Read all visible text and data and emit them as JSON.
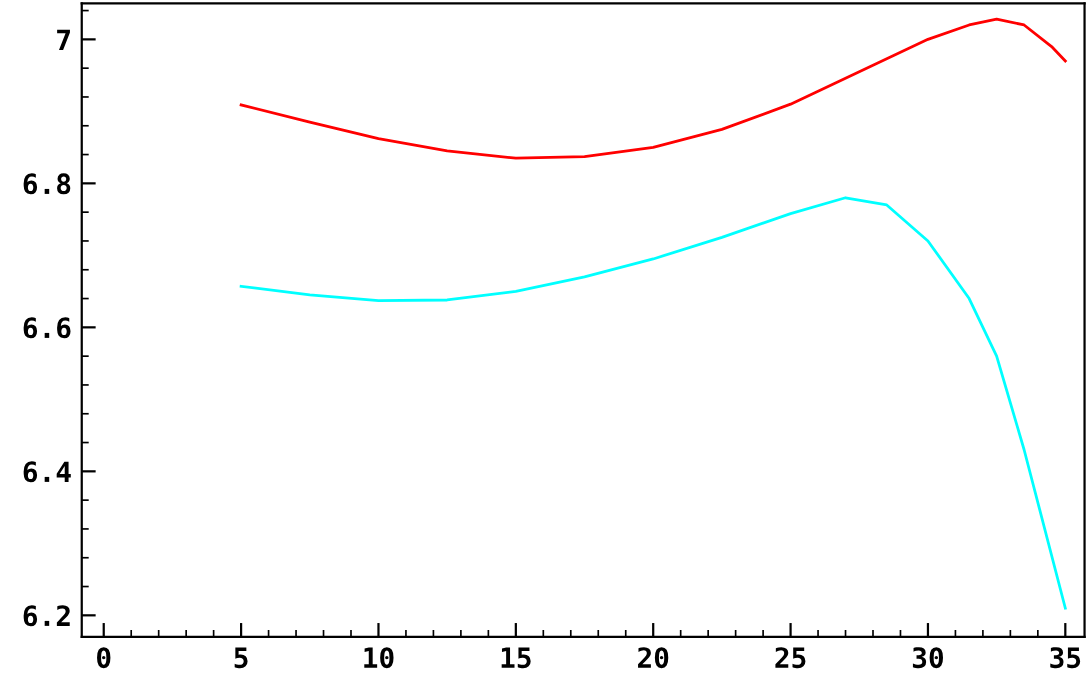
{
  "chart_data": {
    "type": "line",
    "xlim": [
      -0.8,
      35.7
    ],
    "ylim": [
      6.17,
      7.05
    ],
    "xticks": [
      0,
      5,
      10,
      15,
      20,
      25,
      30,
      35
    ],
    "yticks": [
      6.2,
      6.4,
      6.6,
      6.8,
      7
    ],
    "grid": false,
    "marker": "none",
    "line_style": "solid",
    "series": [
      {
        "color": "#ff0000",
        "x": [
          5,
          7.5,
          10,
          12.5,
          15,
          17.5,
          20,
          22.5,
          25,
          27.5,
          30,
          31.5,
          32.5,
          33.5,
          34.5,
          35
        ],
        "values": [
          6.909,
          6.885,
          6.862,
          6.845,
          6.835,
          6.837,
          6.85,
          6.875,
          6.91,
          6.955,
          7.0,
          7.02,
          7.028,
          7.02,
          6.99,
          6.97
        ]
      },
      {
        "color": "#00ffff",
        "x": [
          5,
          7.5,
          10,
          12.5,
          15,
          17.5,
          20,
          22.5,
          25,
          27,
          28.5,
          30,
          31.5,
          32.5,
          33.5,
          35
        ],
        "values": [
          6.657,
          6.645,
          6.637,
          6.638,
          6.65,
          6.67,
          6.695,
          6.725,
          6.758,
          6.78,
          6.77,
          6.72,
          6.64,
          6.56,
          6.43,
          6.21
        ]
      }
    ]
  }
}
